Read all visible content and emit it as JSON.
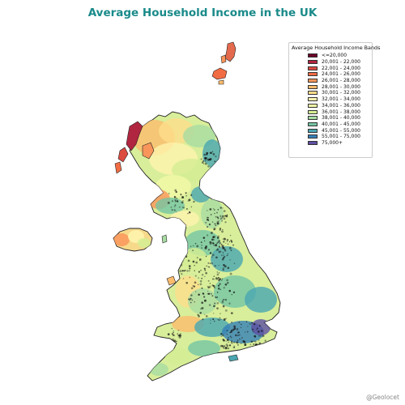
{
  "title": "Average Household Income in the UK",
  "legend": {
    "title": "Average Household Income Bands",
    "items": [
      {
        "label": "<=20,000",
        "color": "#6b0029"
      },
      {
        "label": "20,001 - 22,000",
        "color": "#b0253f"
      },
      {
        "label": "22,001 - 24,000",
        "color": "#dc4b40"
      },
      {
        "label": "24,001 - 26,000",
        "color": "#f26c43"
      },
      {
        "label": "26,001 - 28,000",
        "color": "#f9955a"
      },
      {
        "label": "28,001 - 30,000",
        "color": "#fdbb6c"
      },
      {
        "label": "30,001 - 32,000",
        "color": "#fedd8b"
      },
      {
        "label": "32,001 - 34,000",
        "color": "#fff4ae"
      },
      {
        "label": "34,001 - 36,000",
        "color": "#f2f9a6"
      },
      {
        "label": "36,001 - 38,000",
        "color": "#d4ee93"
      },
      {
        "label": "38,001 - 40,000",
        "color": "#a8dca3"
      },
      {
        "label": "40,001 - 45,000",
        "color": "#74c5a4"
      },
      {
        "label": "45,001 - 55,000",
        "color": "#4aa6b1"
      },
      {
        "label": "55,001 - 75,000",
        "color": "#3580b7"
      },
      {
        "label": "75,000+",
        "color": "#5e4fa2"
      }
    ]
  },
  "credit": "@Geolocet"
}
